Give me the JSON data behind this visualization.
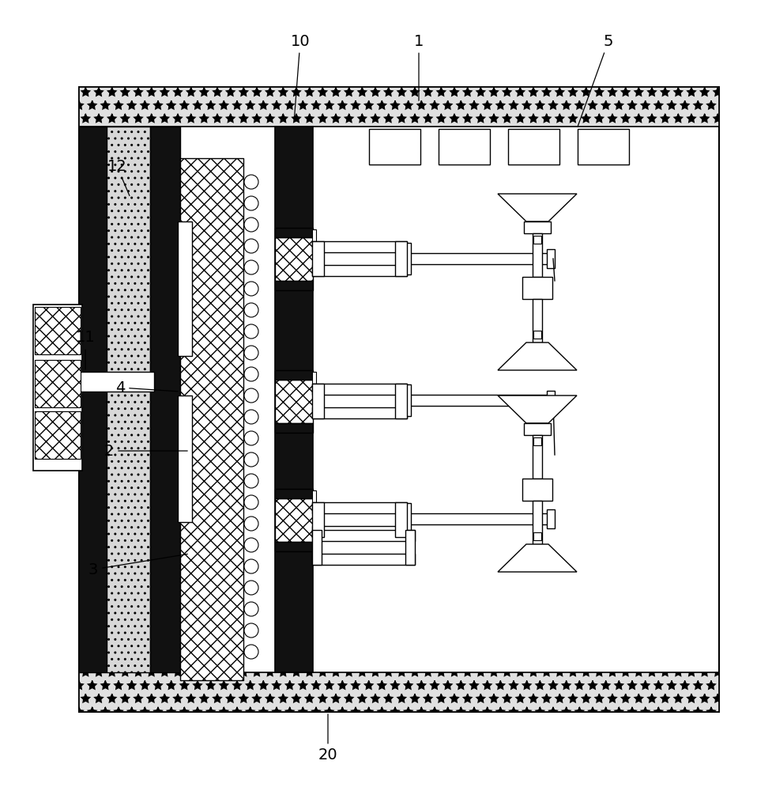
{
  "bg": "#ffffff",
  "black": "#1a1a1a",
  "gray_hatch": "#cccccc",
  "fig_w": 9.58,
  "fig_h": 10.0,
  "dpi": 100
}
